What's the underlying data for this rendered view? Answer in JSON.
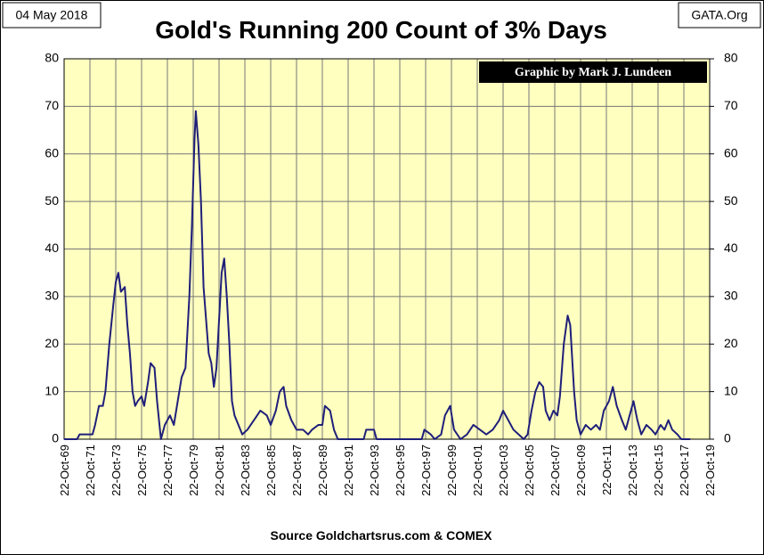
{
  "chart_data": {
    "type": "line",
    "title": "Gold's Running 200 Count of 3% Days",
    "date_label": "04 May 2018",
    "site_label": "GATA.Org",
    "credit": "Graphic by Mark J. Lundeen",
    "source": "Source Goldchartsrus.com & COMEX",
    "x": [
      1969.8,
      1970.8,
      1971.0,
      1972.0,
      1972.2,
      1972.5,
      1972.8,
      1973.0,
      1973.3,
      1973.6,
      1973.8,
      1974.0,
      1974.2,
      1974.5,
      1974.7,
      1974.9,
      1975.1,
      1975.3,
      1975.5,
      1975.8,
      1976.0,
      1976.3,
      1976.5,
      1976.8,
      1977.0,
      1977.3,
      1977.6,
      1978.0,
      1978.3,
      1978.6,
      1978.9,
      1979.2,
      1979.5,
      1979.7,
      1979.9,
      1980.0,
      1980.2,
      1980.4,
      1980.6,
      1980.8,
      1981.0,
      1981.2,
      1981.4,
      1981.6,
      1981.8,
      1982.0,
      1982.2,
      1982.4,
      1982.6,
      1982.8,
      1983.0,
      1983.3,
      1983.6,
      1984.0,
      1984.5,
      1985.0,
      1985.5,
      1985.8,
      1986.2,
      1986.5,
      1986.8,
      1987.0,
      1987.4,
      1987.8,
      1988.3,
      1988.7,
      1989.0,
      1989.5,
      1989.8,
      1990.0,
      1990.4,
      1990.7,
      1991.0,
      1993.0,
      1993.2,
      1993.8,
      1994.0,
      1997.5,
      1997.7,
      1998.2,
      1998.5,
      1999.0,
      1999.3,
      1999.7,
      2000.0,
      2000.5,
      2001.0,
      2001.5,
      2002.0,
      2002.5,
      2003.0,
      2003.5,
      2003.8,
      2004.2,
      2004.6,
      2005.0,
      2005.4,
      2005.7,
      2006.0,
      2006.3,
      2006.6,
      2006.9,
      2007.1,
      2007.4,
      2007.7,
      2008.0,
      2008.2,
      2008.5,
      2008.8,
      2009.0,
      2009.3,
      2009.5,
      2009.8,
      2010.2,
      2010.6,
      2011.0,
      2011.3,
      2011.6,
      2012.0,
      2012.3,
      2012.6,
      2013.0,
      2013.3,
      2013.6,
      2013.9,
      2014.2,
      2014.5,
      2014.9,
      2015.3,
      2015.6,
      2016.0,
      2016.3,
      2016.6,
      2016.9,
      2017.3,
      2017.6,
      2018.3
    ],
    "series": [
      {
        "name": "3% Days",
        "color": "#1f1f7a",
        "values": [
          0,
          0,
          1,
          1,
          3,
          7,
          7,
          10,
          20,
          28,
          33,
          35,
          31,
          32,
          24,
          18,
          10,
          7,
          8,
          9,
          7,
          12,
          16,
          15,
          8,
          0,
          3,
          5,
          3,
          8,
          13,
          15,
          30,
          45,
          63,
          69,
          62,
          50,
          32,
          25,
          18,
          16,
          11,
          15,
          25,
          35,
          38,
          30,
          20,
          8,
          5,
          3,
          1,
          2,
          4,
          6,
          5,
          3,
          6,
          10,
          11,
          7,
          4,
          2,
          2,
          1,
          2,
          3,
          3,
          7,
          6,
          2,
          0,
          0,
          2,
          2,
          0,
          0,
          2,
          1,
          0,
          1,
          5,
          7,
          2,
          0,
          1,
          3,
          2,
          1,
          2,
          4,
          6,
          4,
          2,
          1,
          0,
          1,
          6,
          10,
          12,
          11,
          6,
          4,
          6,
          5,
          9,
          20,
          26,
          24,
          10,
          4,
          1,
          3,
          2,
          3,
          2,
          6,
          8,
          11,
          7,
          4,
          2,
          5,
          8,
          4,
          1,
          3,
          2,
          1,
          3,
          2,
          4,
          2,
          1,
          0,
          0
        ]
      }
    ],
    "xlim": [
      1969.8,
      2019.8
    ],
    "xticks": [
      {
        "value": 1969.8,
        "label": "22-Oct-69"
      },
      {
        "value": 1971.8,
        "label": "22-Oct-71"
      },
      {
        "value": 1973.8,
        "label": "22-Oct-73"
      },
      {
        "value": 1975.8,
        "label": "22-Oct-75"
      },
      {
        "value": 1977.8,
        "label": "22-Oct-77"
      },
      {
        "value": 1979.8,
        "label": "22-Oct-79"
      },
      {
        "value": 1981.8,
        "label": "22-Oct-81"
      },
      {
        "value": 1983.8,
        "label": "22-Oct-83"
      },
      {
        "value": 1985.8,
        "label": "22-Oct-85"
      },
      {
        "value": 1987.8,
        "label": "22-Oct-87"
      },
      {
        "value": 1989.8,
        "label": "22-Oct-89"
      },
      {
        "value": 1991.8,
        "label": "22-Oct-91"
      },
      {
        "value": 1993.8,
        "label": "22-Oct-93"
      },
      {
        "value": 1995.8,
        "label": "22-Oct-95"
      },
      {
        "value": 1997.8,
        "label": "22-Oct-97"
      },
      {
        "value": 1999.8,
        "label": "22-Oct-99"
      },
      {
        "value": 2001.8,
        "label": "22-Oct-01"
      },
      {
        "value": 2003.8,
        "label": "22-Oct-03"
      },
      {
        "value": 2005.8,
        "label": "22-Oct-05"
      },
      {
        "value": 2007.8,
        "label": "22-Oct-07"
      },
      {
        "value": 2009.8,
        "label": "22-Oct-09"
      },
      {
        "value": 2011.8,
        "label": "22-Oct-11"
      },
      {
        "value": 2013.8,
        "label": "22-Oct-13"
      },
      {
        "value": 2015.8,
        "label": "22-Oct-15"
      },
      {
        "value": 2017.8,
        "label": "22-Oct-17"
      },
      {
        "value": 2019.8,
        "label": "22-Oct-19"
      }
    ],
    "ylim": [
      0,
      80
    ],
    "yticks": [
      0,
      10,
      20,
      30,
      40,
      50,
      60,
      70,
      80
    ],
    "y2lim": [
      0,
      80
    ],
    "y2ticks": [
      0,
      10,
      20,
      30,
      40,
      50,
      60,
      70,
      80
    ],
    "grid": true,
    "background": "#ffffc0"
  }
}
